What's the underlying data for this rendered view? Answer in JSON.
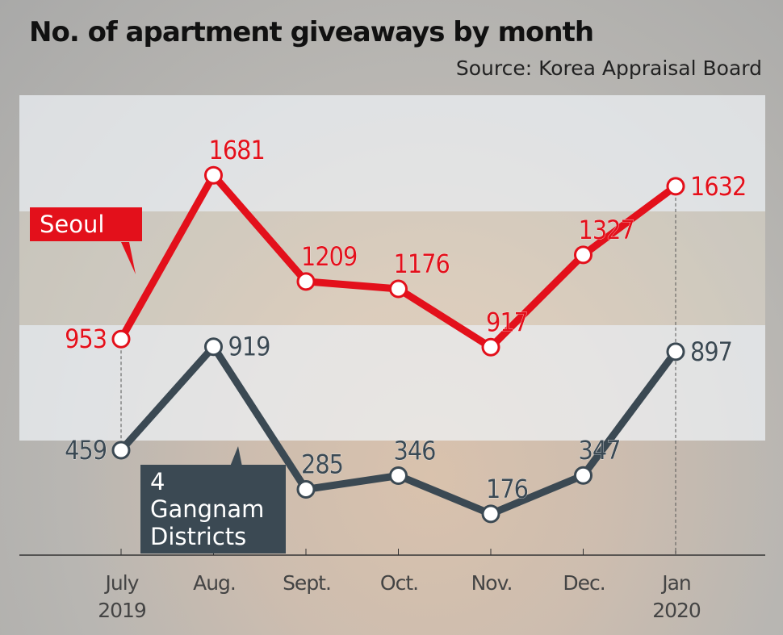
{
  "chart_data": {
    "type": "line",
    "title": "No. of apartment giveaways by month",
    "subtitle": "Source: Korea Appraisal Board",
    "categories": [
      "July 2019",
      "Aug.",
      "Sept.",
      "Oct.",
      "Nov.",
      "Dec.",
      "Jan 2020"
    ],
    "series": [
      {
        "name": "Seoul",
        "color": "#e3101b",
        "values": [
          953,
          1681,
          1209,
          1176,
          917,
          1327,
          1632
        ]
      },
      {
        "name": "4 Gangnam Districts",
        "color": "#3b4953",
        "values": [
          459,
          919,
          285,
          346,
          176,
          347,
          897
        ]
      }
    ],
    "ylim": [
      0,
      1800
    ]
  }
}
